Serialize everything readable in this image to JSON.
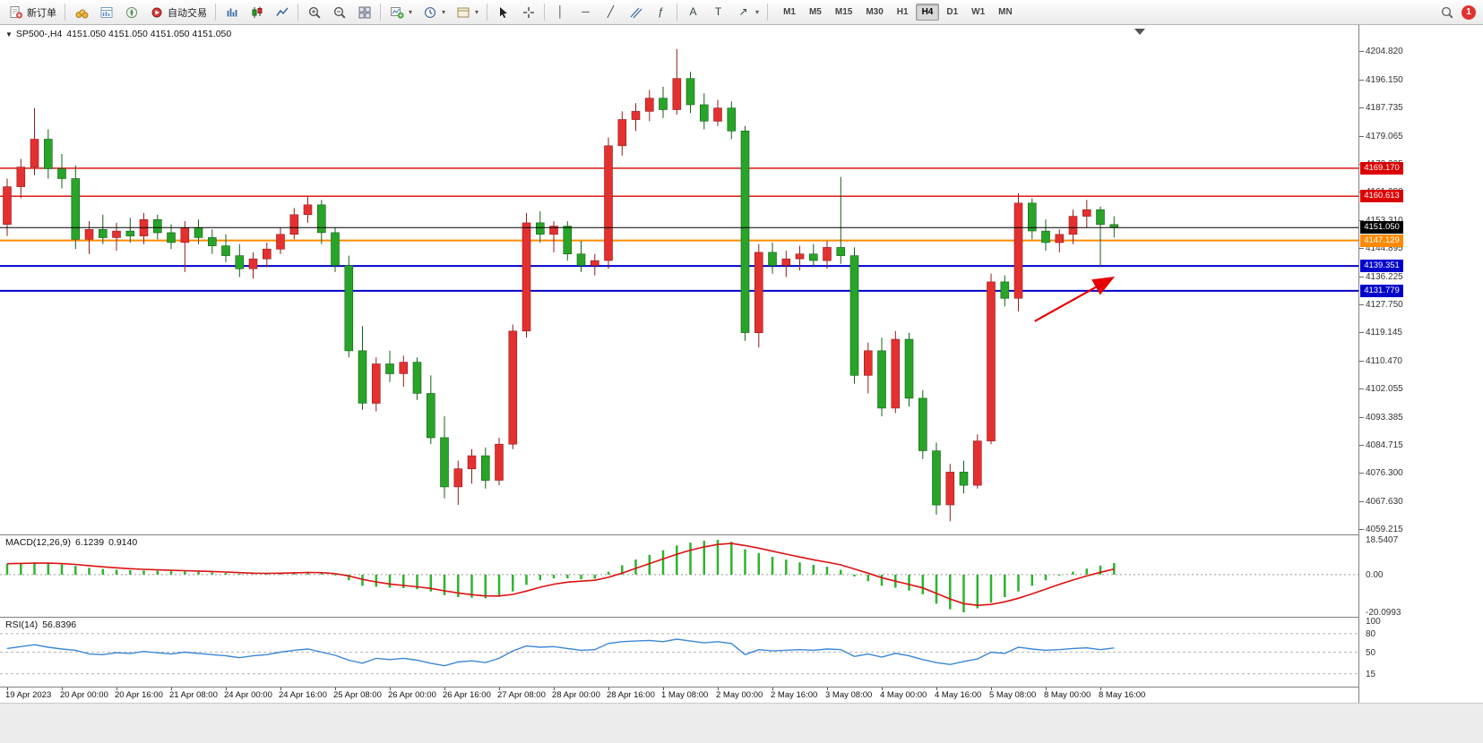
{
  "toolbar": {
    "new_order_label": "新订单",
    "auto_trading_label": "自动交易",
    "timeframes": [
      "M1",
      "M5",
      "M15",
      "M30",
      "H1",
      "H4",
      "D1",
      "W1",
      "MN"
    ],
    "active_timeframe": "H4",
    "notification_badge": "1",
    "icons": [
      "new-order",
      "market-watch",
      "data-window",
      "navigator",
      "auto-trading",
      "bar-chart",
      "candlestick-chart",
      "line-chart",
      "zoom-in",
      "zoom-out",
      "tile-windows",
      "new-chart",
      "periods",
      "templates",
      "cursor",
      "crosshair",
      "vertical-line",
      "horizontal-line",
      "trendline",
      "equidistant-channel",
      "fibonacci",
      "text",
      "text-label",
      "arrows",
      "search",
      "notification"
    ]
  },
  "glyphs": {
    "collapse": "▼",
    "caret": "▾",
    "fibonacci": "ƒ",
    "text_tool": "A",
    "label_tool": "T",
    "arrows_tool": "↗",
    "vline": "│",
    "hline": "─",
    "trend": "╱"
  },
  "chart_header": {
    "symbol_label": "SP500-,H4",
    "ohlc_label": "4151.050 4151.050 4151.050 4151.050"
  },
  "chart_data": {
    "type": "candlestick",
    "symbol": "SP500-",
    "timeframe": "H4",
    "ylim": [
      4057.5,
      4212.8
    ],
    "price_axis_labels": [
      "4204.820",
      "4196.150",
      "4187.735",
      "4179.065",
      "4170.395",
      "4161.980",
      "4153.310",
      "4144.895",
      "4136.225",
      "4127.750",
      "4119.145",
      "4110.470",
      "4102.055",
      "4093.385",
      "4084.715",
      "4076.300",
      "4067.630",
      "4059.215"
    ],
    "bid": {
      "price": 4151.05,
      "tag": "4151.050",
      "color": "#000000"
    },
    "levels": [
      {
        "price": 4169.17,
        "tag": "4169.170",
        "color": "#dd0000",
        "width": 1.4
      },
      {
        "price": 4160.613,
        "tag": "4160.613",
        "color": "#dd0000",
        "width": 1.4
      },
      {
        "price": 4147.129,
        "tag": "4147.129",
        "color": "#ff8a00",
        "width": 2
      },
      {
        "price": 4139.351,
        "tag": "4139.351",
        "color": "#0000cc",
        "width": 2
      },
      {
        "price": 4131.779,
        "tag": "4131.779",
        "color": "#0000cc",
        "width": 2
      }
    ],
    "colors": {
      "bull": "#e53030",
      "bear": "#28a428",
      "bull_outline": "#8f1d1d",
      "bear_outline": "#14601a"
    },
    "annotations": [
      {
        "type": "arrow",
        "color": "#e60000",
        "from": [
          75.2,
          4122.5
        ],
        "to": [
          80.8,
          4135.5
        ]
      }
    ],
    "x_labels": [
      "19 Apr 2023",
      "20 Apr 00:00",
      "20 Apr 16:00",
      "21 Apr 08:00",
      "24 Apr 00:00",
      "24 Apr 16:00",
      "25 Apr 08:00",
      "26 Apr 00:00",
      "26 Apr 16:00",
      "27 Apr 08:00",
      "28 Apr 00:00",
      "28 Apr 16:00",
      "1 May 08:00",
      "2 May 00:00",
      "2 May 16:00",
      "3 May 08:00",
      "4 May 00:00",
      "4 May 16:00",
      "5 May 08:00",
      "8 May 00:00",
      "8 May 16:00"
    ],
    "candles": [
      [
        4152.0,
        4166.0,
        4148.5,
        4163.5
      ],
      [
        4163.5,
        4172.0,
        4160.0,
        4169.5
      ],
      [
        4169.5,
        4187.5,
        4167.0,
        4178.0
      ],
      [
        4178.0,
        4181.0,
        4166.0,
        4169.0
      ],
      [
        4169.0,
        4173.5,
        4163.0,
        4166.0
      ],
      [
        4166.0,
        4170.0,
        4144.5,
        4147.5
      ],
      [
        4147.5,
        4153.0,
        4143.0,
        4150.5
      ],
      [
        4150.5,
        4155.0,
        4146.0,
        4148.0
      ],
      [
        4148.0,
        4152.5,
        4144.0,
        4150.0
      ],
      [
        4150.0,
        4154.0,
        4146.5,
        4148.5
      ],
      [
        4148.5,
        4155.5,
        4146.0,
        4153.5
      ],
      [
        4153.5,
        4155.0,
        4147.5,
        4149.5
      ],
      [
        4149.5,
        4152.0,
        4144.5,
        4146.5
      ],
      [
        4146.5,
        4153.0,
        4137.5,
        4151.0
      ],
      [
        4151.0,
        4153.5,
        4146.0,
        4148.0
      ],
      [
        4148.0,
        4150.5,
        4143.0,
        4145.5
      ],
      [
        4145.5,
        4149.0,
        4140.5,
        4142.5
      ],
      [
        4142.5,
        4146.0,
        4136.0,
        4138.5
      ],
      [
        4138.5,
        4143.5,
        4135.5,
        4141.5
      ],
      [
        4141.5,
        4146.5,
        4139.0,
        4144.5
      ],
      [
        4144.5,
        4151.0,
        4143.0,
        4149.0
      ],
      [
        4149.0,
        4157.0,
        4147.5,
        4155.0
      ],
      [
        4155.0,
        4160.5,
        4152.5,
        4158.0
      ],
      [
        4158.0,
        4159.5,
        4146.0,
        4149.5
      ],
      [
        4149.5,
        4151.0,
        4137.5,
        4139.5
      ],
      [
        4139.5,
        4142.5,
        4111.5,
        4113.5
      ],
      [
        4113.5,
        4121.0,
        4095.5,
        4097.5
      ],
      [
        4097.5,
        4111.5,
        4095.0,
        4109.5
      ],
      [
        4109.5,
        4113.5,
        4104.0,
        4106.5
      ],
      [
        4106.5,
        4112.0,
        4102.5,
        4110.0
      ],
      [
        4110.0,
        4111.5,
        4098.5,
        4100.5
      ],
      [
        4100.5,
        4106.0,
        4085.0,
        4087.0
      ],
      [
        4087.0,
        4093.5,
        4068.5,
        4072.0
      ],
      [
        4072.0,
        4080.0,
        4066.5,
        4077.5
      ],
      [
        4077.5,
        4083.5,
        4073.0,
        4081.5
      ],
      [
        4081.5,
        4084.0,
        4071.5,
        4074.0
      ],
      [
        4074.0,
        4087.0,
        4072.5,
        4085.0
      ],
      [
        4085.0,
        4121.5,
        4083.5,
        4119.5
      ],
      [
        4119.5,
        4155.5,
        4117.5,
        4152.5
      ],
      [
        4152.5,
        4156.0,
        4146.5,
        4149.0
      ],
      [
        4149.0,
        4153.0,
        4143.5,
        4151.5
      ],
      [
        4151.5,
        4153.0,
        4141.0,
        4143.0
      ],
      [
        4143.0,
        4147.0,
        4137.5,
        4139.5
      ],
      [
        4139.5,
        4143.0,
        4136.5,
        4141.0
      ],
      [
        4141.0,
        4178.5,
        4138.5,
        4176.0
      ],
      [
        4176.0,
        4186.5,
        4173.0,
        4184.0
      ],
      [
        4184.0,
        4189.0,
        4180.5,
        4186.5
      ],
      [
        4186.5,
        4193.0,
        4183.5,
        4190.5
      ],
      [
        4190.5,
        4194.0,
        4184.5,
        4187.0
      ],
      [
        4187.0,
        4205.5,
        4185.5,
        4196.5
      ],
      [
        4196.5,
        4198.5,
        4186.0,
        4188.5
      ],
      [
        4188.5,
        4192.0,
        4181.0,
        4183.5
      ],
      [
        4183.5,
        4190.0,
        4182.0,
        4187.5
      ],
      [
        4187.5,
        4189.5,
        4178.0,
        4180.5
      ],
      [
        4180.5,
        4182.0,
        4116.5,
        4119.0
      ],
      [
        4119.0,
        4146.0,
        4114.5,
        4143.5
      ],
      [
        4143.5,
        4146.5,
        4137.0,
        4139.5
      ],
      [
        4139.5,
        4144.0,
        4136.0,
        4141.5
      ],
      [
        4141.5,
        4145.5,
        4138.0,
        4143.0
      ],
      [
        4143.0,
        4146.0,
        4139.0,
        4141.0
      ],
      [
        4141.0,
        4147.0,
        4138.5,
        4145.0
      ],
      [
        4145.0,
        4166.5,
        4140.0,
        4142.5
      ],
      [
        4142.5,
        4145.0,
        4103.5,
        4106.0
      ],
      [
        4106.0,
        4116.0,
        4100.5,
        4113.5
      ],
      [
        4113.5,
        4117.5,
        4093.5,
        4096.0
      ],
      [
        4096.0,
        4119.5,
        4094.5,
        4117.0
      ],
      [
        4117.0,
        4119.0,
        4096.5,
        4099.0
      ],
      [
        4099.0,
        4101.5,
        4080.5,
        4083.0
      ],
      [
        4083.0,
        4085.5,
        4063.5,
        4066.5
      ],
      [
        4066.5,
        4079.0,
        4061.5,
        4076.5
      ],
      [
        4076.5,
        4080.0,
        4070.0,
        4072.5
      ],
      [
        4072.5,
        4088.0,
        4071.5,
        4086.0
      ],
      [
        4086.0,
        4137.0,
        4085.0,
        4134.5
      ],
      [
        4134.5,
        4136.5,
        4127.0,
        4129.5
      ],
      [
        4129.5,
        4161.5,
        4125.5,
        4158.5
      ],
      [
        4158.5,
        4160.0,
        4147.5,
        4150.0
      ],
      [
        4150.0,
        4153.5,
        4144.0,
        4146.5
      ],
      [
        4146.5,
        4150.5,
        4143.5,
        4149.0
      ],
      [
        4149.0,
        4156.5,
        4146.0,
        4154.5
      ],
      [
        4154.5,
        4159.5,
        4151.0,
        4156.5
      ],
      [
        4156.5,
        4157.5,
        4139.0,
        4152.0
      ],
      [
        4152.0,
        4154.5,
        4148.0,
        4151.05
      ]
    ],
    "indicators": {
      "macd": {
        "label": "MACD(12,26,9)",
        "value_main": "6.1239",
        "value_signal": "0.9140",
        "axis_labels": [
          "18.5407",
          "0.00",
          "-20.0993"
        ],
        "max": 18.5407,
        "min": -20.0993,
        "histogram_color": "#2db32d",
        "signal_color": "#dd1111",
        "values": [
          5.8,
          6.2,
          6.5,
          6.0,
          5.4,
          4.6,
          3.6,
          3.0,
          2.6,
          2.3,
          2.2,
          2.0,
          1.8,
          1.7,
          1.5,
          1.2,
          0.9,
          0.4,
          0.2,
          0.5,
          0.9,
          1.3,
          1.5,
          0.9,
          -0.5,
          -3.0,
          -6.0,
          -6.5,
          -7.0,
          -7.2,
          -7.8,
          -9.0,
          -11.0,
          -12.0,
          -12.3,
          -12.6,
          -11.5,
          -9.0,
          -5.5,
          -3.0,
          -2.0,
          -2.0,
          -2.5,
          -2.2,
          1.5,
          5.0,
          8.0,
          10.5,
          13.0,
          15.5,
          17.0,
          18.0,
          18.5,
          17.5,
          13.5,
          11.5,
          9.5,
          8.0,
          6.5,
          5.2,
          4.2,
          2.5,
          -1.0,
          -3.5,
          -6.0,
          -7.0,
          -8.5,
          -10.5,
          -15.5,
          -18.5,
          -20.1,
          -18.0,
          -15.0,
          -12.0,
          -9.0,
          -6.0,
          -3.0,
          -0.5,
          1.5,
          3.2,
          4.8,
          6.1239
        ]
      },
      "rsi": {
        "label": "RSI(14)",
        "value": "56.8396",
        "axis_labels": [
          "100",
          "80",
          "50",
          "15"
        ],
        "levels": [
          80,
          50,
          15
        ],
        "line_color": "#3a87d8",
        "values": [
          56,
          59,
          62,
          58,
          55,
          53,
          47,
          46,
          49,
          48,
          51,
          49,
          47,
          50,
          48,
          46,
          44,
          41,
          44,
          46,
          50,
          53,
          55,
          50,
          45,
          37,
          32,
          40,
          38,
          40,
          37,
          32,
          28,
          34,
          36,
          33,
          40,
          52,
          60,
          58,
          59,
          56,
          53,
          54,
          64,
          67,
          68,
          69,
          67,
          71,
          68,
          65,
          67,
          64,
          46,
          54,
          52,
          53,
          54,
          53,
          55,
          54,
          43,
          47,
          42,
          48,
          44,
          38,
          33,
          30,
          35,
          39,
          50,
          48,
          58,
          55,
          53,
          54,
          56,
          57,
          54,
          56.8396
        ]
      }
    }
  }
}
